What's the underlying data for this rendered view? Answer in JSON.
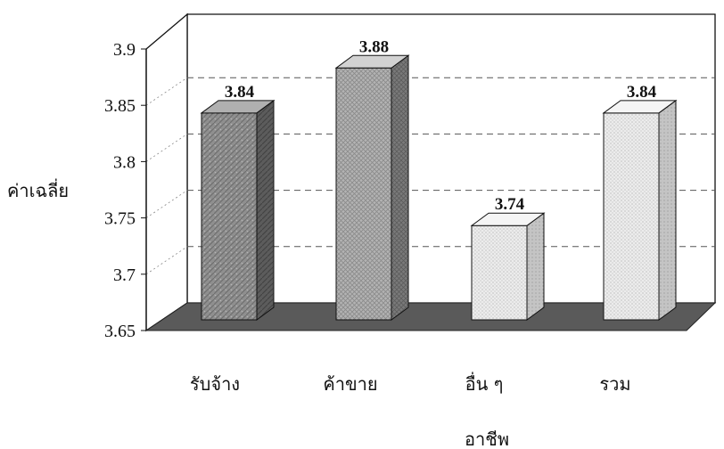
{
  "chart_data": {
    "type": "bar",
    "categories": [
      "รับจ้าง",
      "ค้าขาย",
      "อื่น ๆ",
      "รวม"
    ],
    "values": [
      3.84,
      3.88,
      3.74,
      3.84
    ],
    "data_labels": [
      "3.84",
      "3.88",
      "3.74",
      "3.84"
    ],
    "title": "",
    "xlabel": "อาชีพ",
    "ylabel": "ค่าเฉลี่ย",
    "ylim": [
      3.65,
      3.9
    ],
    "yticks": [
      "3.65",
      "3.7",
      "3.75",
      "3.8",
      "3.85",
      "3.9"
    ],
    "grid": true,
    "legend": "none",
    "style": "3d-column",
    "colors": {
      "bar_dark": "#8c8c8c",
      "bar_light": "#e6e6e6",
      "floor": "#5a5a5a",
      "wall": "#ffffff",
      "gridline": "#555555"
    }
  }
}
